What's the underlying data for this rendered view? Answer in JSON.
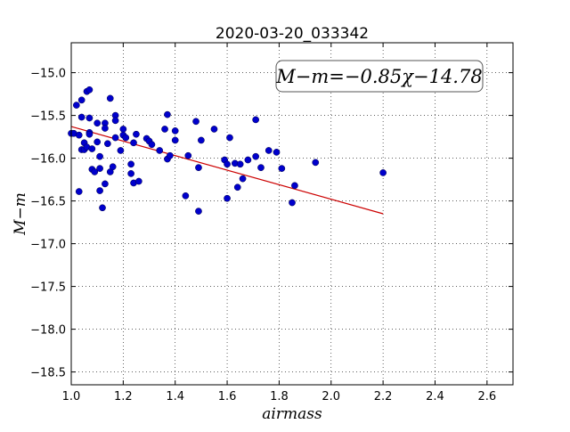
{
  "chart_data": {
    "type": "scatter",
    "title": "2020-03-20_033342",
    "xlabel": "airmass",
    "ylabel": "M−m",
    "xlim": [
      1.0,
      2.7
    ],
    "ylim": [
      -18.65,
      -14.65
    ],
    "y_inverted": true,
    "grid": true,
    "xticks": [
      "1.0",
      "1.2",
      "1.4",
      "1.6",
      "1.8",
      "2.0",
      "2.2",
      "2.4",
      "2.6"
    ],
    "yticks": [
      "−15.0",
      "−15.5",
      "−16.0",
      "−16.5",
      "−17.0",
      "−17.5",
      "−18.0",
      "−18.5"
    ],
    "annotation": "M−m=−0.85χ−14.78",
    "fit_line": {
      "slope": -0.85,
      "intercept": -14.78,
      "x_range": [
        1.0,
        2.2
      ],
      "color": "#cc0000"
    },
    "point_color": "#0000cc",
    "points": [
      [
        1.0,
        -15.71
      ],
      [
        1.01,
        -15.71
      ],
      [
        1.02,
        -15.38
      ],
      [
        1.03,
        -15.73
      ],
      [
        1.03,
        -16.39
      ],
      [
        1.04,
        -15.32
      ],
      [
        1.04,
        -15.52
      ],
      [
        1.04,
        -15.9
      ],
      [
        1.05,
        -15.9
      ],
      [
        1.05,
        -15.82
      ],
      [
        1.06,
        -15.22
      ],
      [
        1.06,
        -15.87
      ],
      [
        1.07,
        -15.2
      ],
      [
        1.07,
        -15.53
      ],
      [
        1.07,
        -15.7
      ],
      [
        1.07,
        -15.72
      ],
      [
        1.08,
        -16.13
      ],
      [
        1.08,
        -15.89
      ],
      [
        1.09,
        -16.16
      ],
      [
        1.1,
        -15.81
      ],
      [
        1.1,
        -15.59
      ],
      [
        1.11,
        -16.12
      ],
      [
        1.11,
        -16.38
      ],
      [
        1.11,
        -15.98
      ],
      [
        1.12,
        -16.58
      ],
      [
        1.13,
        -15.59
      ],
      [
        1.13,
        -15.65
      ],
      [
        1.13,
        -16.3
      ],
      [
        1.14,
        -15.83
      ],
      [
        1.15,
        -15.3
      ],
      [
        1.15,
        -16.16
      ],
      [
        1.16,
        -16.1
      ],
      [
        1.17,
        -15.5
      ],
      [
        1.17,
        -15.56
      ],
      [
        1.17,
        -15.76
      ],
      [
        1.19,
        -15.91
      ],
      [
        1.2,
        -15.66
      ],
      [
        1.2,
        -15.73
      ],
      [
        1.21,
        -15.76
      ],
      [
        1.23,
        -16.18
      ],
      [
        1.23,
        -16.07
      ],
      [
        1.24,
        -16.29
      ],
      [
        1.24,
        -15.82
      ],
      [
        1.25,
        -15.72
      ],
      [
        1.26,
        -16.27
      ],
      [
        1.29,
        -15.77
      ],
      [
        1.3,
        -15.8
      ],
      [
        1.31,
        -15.84
      ],
      [
        1.34,
        -15.91
      ],
      [
        1.36,
        -15.66
      ],
      [
        1.37,
        -15.49
      ],
      [
        1.37,
        -16.01
      ],
      [
        1.38,
        -15.97
      ],
      [
        1.4,
        -15.68
      ],
      [
        1.4,
        -15.79
      ],
      [
        1.44,
        -16.44
      ],
      [
        1.45,
        -15.97
      ],
      [
        1.48,
        -15.57
      ],
      [
        1.49,
        -16.62
      ],
      [
        1.49,
        -16.11
      ],
      [
        1.5,
        -15.79
      ],
      [
        1.55,
        -15.66
      ],
      [
        1.59,
        -16.02
      ],
      [
        1.6,
        -16.47
      ],
      [
        1.6,
        -16.07
      ],
      [
        1.61,
        -15.76
      ],
      [
        1.63,
        -16.06
      ],
      [
        1.64,
        -16.34
      ],
      [
        1.65,
        -16.07
      ],
      [
        1.66,
        -16.24
      ],
      [
        1.68,
        -16.02
      ],
      [
        1.71,
        -15.55
      ],
      [
        1.71,
        -15.98
      ],
      [
        1.73,
        -16.11
      ],
      [
        1.76,
        -15.91
      ],
      [
        1.79,
        -15.93
      ],
      [
        1.81,
        -16.12
      ],
      [
        1.85,
        -16.52
      ],
      [
        1.86,
        -16.32
      ],
      [
        1.94,
        -16.05
      ],
      [
        2.2,
        -16.17
      ]
    ]
  }
}
